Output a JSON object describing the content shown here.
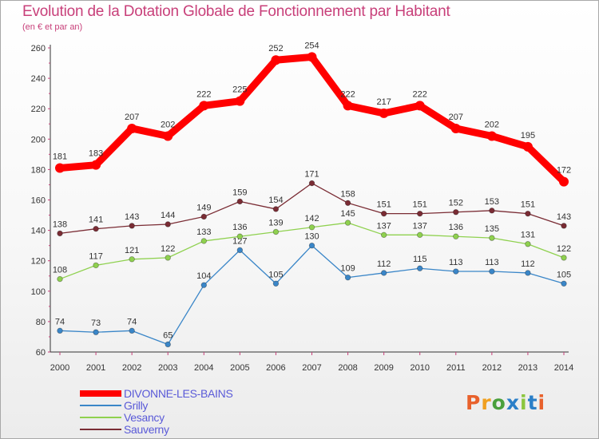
{
  "title": "Evolution de la Dotation Globale de Fonctionnement par Habitant",
  "subtitle": "(en € et par an)",
  "brand": {
    "p": "P",
    "r": "r",
    "o": "o",
    "x": "x",
    "i1": "i",
    "t": "t",
    "i2": "i"
  },
  "chart_data": {
    "type": "line",
    "title": "Evolution de la Dotation Globale de Fonctionnement par Habitant",
    "subtitle": "(en € et par an)",
    "xlabel": "",
    "ylabel": "",
    "x": [
      2000,
      2001,
      2002,
      2003,
      2004,
      2005,
      2006,
      2007,
      2008,
      2009,
      2010,
      2011,
      2012,
      2013,
      2014
    ],
    "ylim": [
      60,
      260
    ],
    "yticks": [
      60,
      80,
      100,
      120,
      140,
      160,
      180,
      200,
      220,
      240,
      260
    ],
    "grid": false,
    "legend": "bottom-left",
    "series": [
      {
        "name": "DIVONNE-LES-BAINS",
        "color": "#ff0000",
        "values": [
          181,
          183,
          207,
          202,
          222,
          225,
          252,
          254,
          222,
          217,
          222,
          207,
          202,
          195,
          172
        ]
      },
      {
        "name": "Grilly",
        "color": "#3a86c8",
        "values": [
          74,
          73,
          74,
          65,
          104,
          127,
          105,
          130,
          109,
          112,
          115,
          113,
          113,
          112,
          105
        ]
      },
      {
        "name": "Vesancy",
        "color": "#8fd14f",
        "values": [
          108,
          117,
          121,
          122,
          133,
          136,
          139,
          142,
          145,
          137,
          137,
          136,
          135,
          131,
          122
        ]
      },
      {
        "name": "Sauverny",
        "color": "#7a2c34",
        "values": [
          138,
          141,
          143,
          144,
          149,
          159,
          154,
          171,
          158,
          151,
          151,
          152,
          153,
          151,
          143
        ]
      }
    ]
  }
}
